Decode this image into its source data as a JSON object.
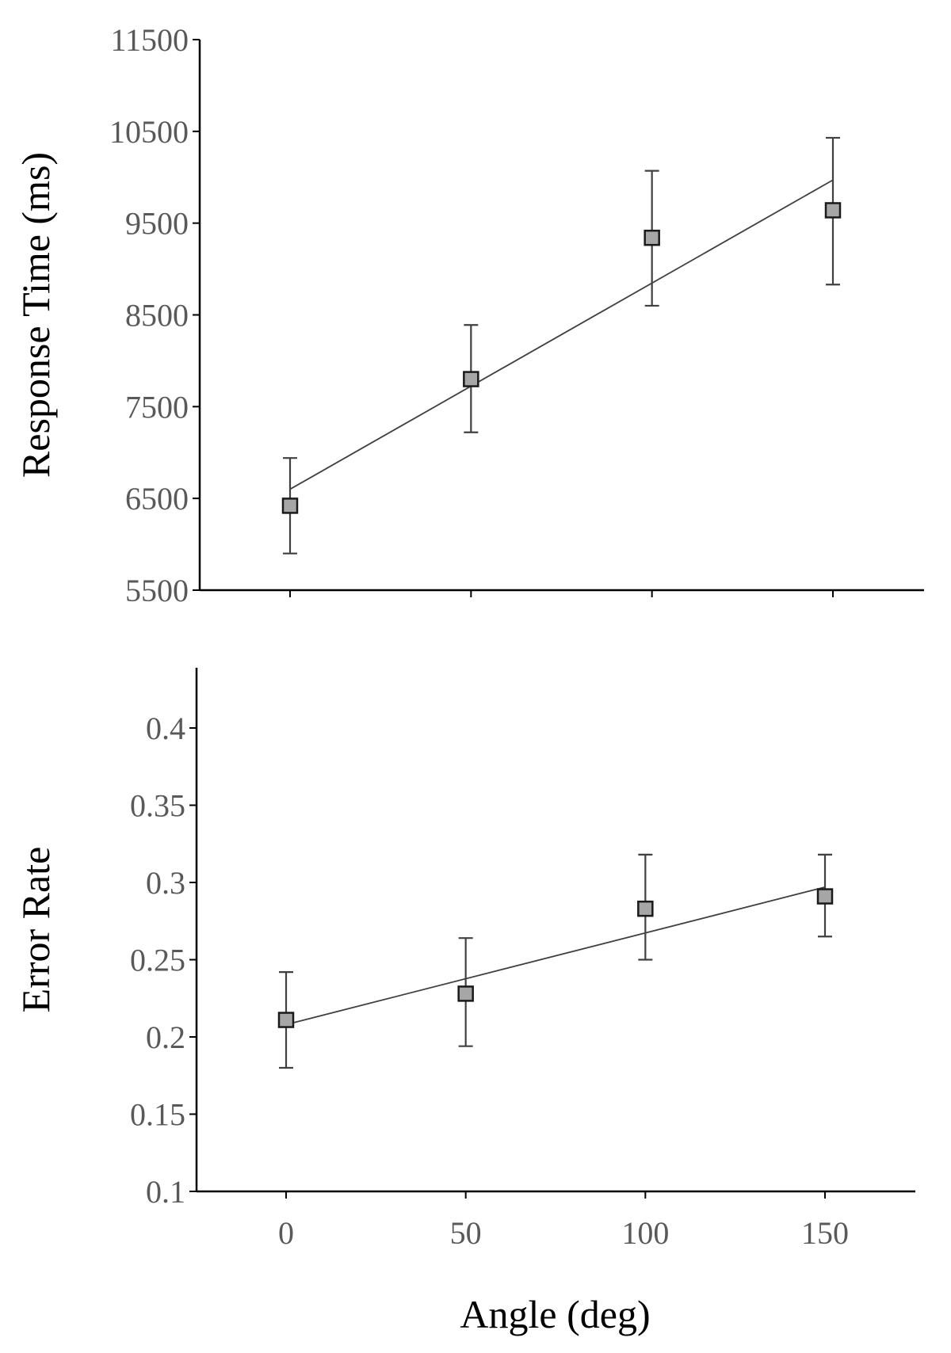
{
  "chart_data": [
    {
      "type": "scatter",
      "xlabel": "",
      "ylabel": "Response Time (ms)",
      "ylim": [
        5500,
        11500
      ],
      "xlim": [
        -25,
        175
      ],
      "yticks": [
        "5500",
        "6500",
        "7500",
        "8500",
        "9500",
        "10500",
        "11500"
      ],
      "xticks": [],
      "series": [
        {
          "name": "Response Time",
          "x": [
            0,
            50,
            100,
            150
          ],
          "y": [
            6420,
            7800,
            9340,
            9640
          ],
          "error_low": [
            5900,
            7220,
            8600,
            8830
          ],
          "error_high": [
            6940,
            8390,
            10070,
            10430
          ],
          "marker": "square",
          "color": "#a6a6a6"
        }
      ],
      "trendline": {
        "x": [
          0,
          150
        ],
        "y": [
          6600,
          9970
        ]
      }
    },
    {
      "type": "scatter",
      "xlabel": "Angle (deg)",
      "ylabel": "Error Rate",
      "ylim": [
        0.1,
        0.45
      ],
      "xlim": [
        -25,
        175
      ],
      "yticks": [
        "0.1",
        "0.15",
        "0.2",
        "0.25",
        "0.3",
        "0.35",
        "0.4"
      ],
      "xticks": [
        "0",
        "50",
        "100",
        "150"
      ],
      "series": [
        {
          "name": "Error Rate",
          "x": [
            0,
            50,
            100,
            150
          ],
          "y": [
            0.211,
            0.228,
            0.283,
            0.291
          ],
          "error_low": [
            0.18,
            0.194,
            0.25,
            0.265
          ],
          "error_high": [
            0.242,
            0.264,
            0.318,
            0.318
          ],
          "marker": "square",
          "color": "#a6a6a6"
        }
      ],
      "trendline": {
        "x": [
          0,
          150
        ],
        "y": [
          0.208,
          0.297
        ]
      }
    }
  ]
}
